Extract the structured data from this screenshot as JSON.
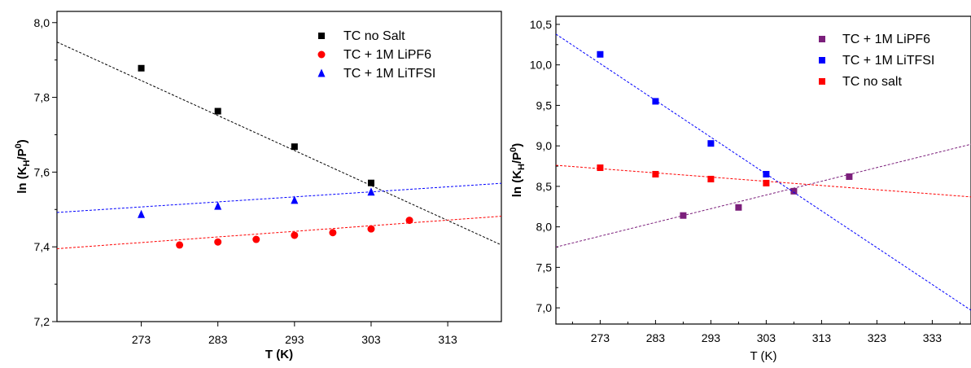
{
  "chart_data": [
    {
      "type": "scatter",
      "xlabel": "T (K)",
      "ylabel_main": "ln (K",
      "ylabel_sub": "H",
      "ylabel_mid": "/P",
      "ylabel_sup": "0",
      "ylabel_end": ")",
      "xlim": [
        262,
        320
      ],
      "ylim": [
        7.2,
        8.03
      ],
      "xticks": [
        273,
        283,
        293,
        303,
        313
      ],
      "yticks": [
        7.2,
        7.4,
        7.6,
        7.8,
        8.0
      ],
      "ytick_labels": [
        "7,2",
        "7,4",
        "7,6",
        "7,8",
        "8,0"
      ],
      "grid": false,
      "legend_position": "top-right",
      "series": [
        {
          "name": "TC no Salt",
          "marker": "square",
          "color": "#000000",
          "points": [
            [
              273,
              7.878
            ],
            [
              283,
              7.763
            ],
            [
              293,
              7.668
            ],
            [
              303,
              7.571
            ]
          ],
          "fit": [
            [
              262,
              7.948
            ],
            [
              320,
              7.405
            ]
          ]
        },
        {
          "name": "TC + 1M LiPF6",
          "marker": "circle",
          "color": "#ff0000",
          "points": [
            [
              278,
              7.405
            ],
            [
              283,
              7.413
            ],
            [
              288,
              7.42
            ],
            [
              293,
              7.431
            ],
            [
              298,
              7.438
            ],
            [
              303,
              7.448
            ],
            [
              308,
              7.471
            ]
          ],
          "fit": [
            [
              262,
              7.395
            ],
            [
              320,
              7.482
            ]
          ]
        },
        {
          "name": "TC + 1M LiTFSI",
          "marker": "triangle",
          "color": "#0000ff",
          "points": [
            [
              273,
              7.487
            ],
            [
              283,
              7.509
            ],
            [
              293,
              7.525
            ],
            [
              303,
              7.547
            ]
          ],
          "fit": [
            [
              262,
              7.492
            ],
            [
              320,
              7.57
            ]
          ]
        }
      ]
    },
    {
      "type": "scatter",
      "xlabel": "T (K)",
      "ylabel_main": "ln (K",
      "ylabel_sub": "H",
      "ylabel_mid": "/P",
      "ylabel_sup": "0",
      "ylabel_end": ")",
      "xlim": [
        265,
        340
      ],
      "ylim": [
        6.8,
        10.6
      ],
      "xticks": [
        273,
        283,
        293,
        303,
        313,
        323,
        333
      ],
      "yticks": [
        7.0,
        7.5,
        8.0,
        8.5,
        9.0,
        9.5,
        10.0,
        10.5
      ],
      "ytick_labels": [
        "7,0",
        "7,5",
        "8,0",
        "8,5",
        "9,0",
        "9,5",
        "10,0",
        "10,5"
      ],
      "grid": false,
      "legend_position": "top-right",
      "series": [
        {
          "name": "TC + 1M LiPF6",
          "marker": "square",
          "color": "#7b1f7b",
          "points": [
            [
              288,
              8.14
            ],
            [
              298,
              8.24
            ],
            [
              308,
              8.44
            ],
            [
              318,
              8.62
            ]
          ],
          "fit": [
            [
              265,
              7.75
            ],
            [
              340,
              9.02
            ]
          ]
        },
        {
          "name": "TC + 1M LiTFSI",
          "marker": "square",
          "color": "#0000ff",
          "points": [
            [
              273,
              10.13
            ],
            [
              283,
              9.55
            ],
            [
              293,
              9.03
            ],
            [
              303,
              8.65
            ]
          ],
          "fit": [
            [
              265,
              10.38
            ],
            [
              340,
              6.97
            ]
          ]
        },
        {
          "name": "TC no salt",
          "marker": "square",
          "color": "#ff0000",
          "points": [
            [
              273,
              8.73
            ],
            [
              283,
              8.65
            ],
            [
              293,
              8.59
            ],
            [
              303,
              8.54
            ]
          ],
          "fit": [
            [
              265,
              8.76
            ],
            [
              340,
              8.37
            ]
          ]
        }
      ]
    }
  ]
}
